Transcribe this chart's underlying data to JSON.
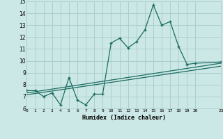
{
  "title": "",
  "xlabel": "Humidex (Indice chaleur)",
  "ylabel": "",
  "bg_color": "#cce8e6",
  "grid_color": "#aacfcc",
  "line_color": "#1a6b60",
  "xlim": [
    0,
    23
  ],
  "ylim": [
    6,
    15
  ],
  "xticks": [
    0,
    1,
    2,
    3,
    4,
    5,
    6,
    7,
    8,
    9,
    10,
    11,
    12,
    13,
    14,
    15,
    16,
    17,
    18,
    19,
    20,
    23
  ],
  "yticks": [
    6,
    7,
    8,
    9,
    10,
    11,
    12,
    13,
    14,
    15
  ],
  "series1_x": [
    0,
    1,
    2,
    3,
    4,
    5,
    6,
    7,
    8,
    9,
    10,
    11,
    12,
    13,
    14,
    15,
    16,
    17,
    18,
    19,
    20,
    23
  ],
  "series1_y": [
    7.5,
    7.5,
    7.0,
    7.3,
    6.3,
    8.6,
    6.7,
    6.3,
    7.2,
    7.2,
    11.5,
    11.9,
    11.1,
    11.6,
    12.6,
    14.7,
    13.0,
    13.3,
    11.2,
    9.7,
    9.8,
    9.9
  ],
  "series2_x": [
    0,
    23
  ],
  "series2_y": [
    7.3,
    9.8
  ],
  "series3_x": [
    0,
    23
  ],
  "series3_y": [
    7.15,
    9.55
  ]
}
